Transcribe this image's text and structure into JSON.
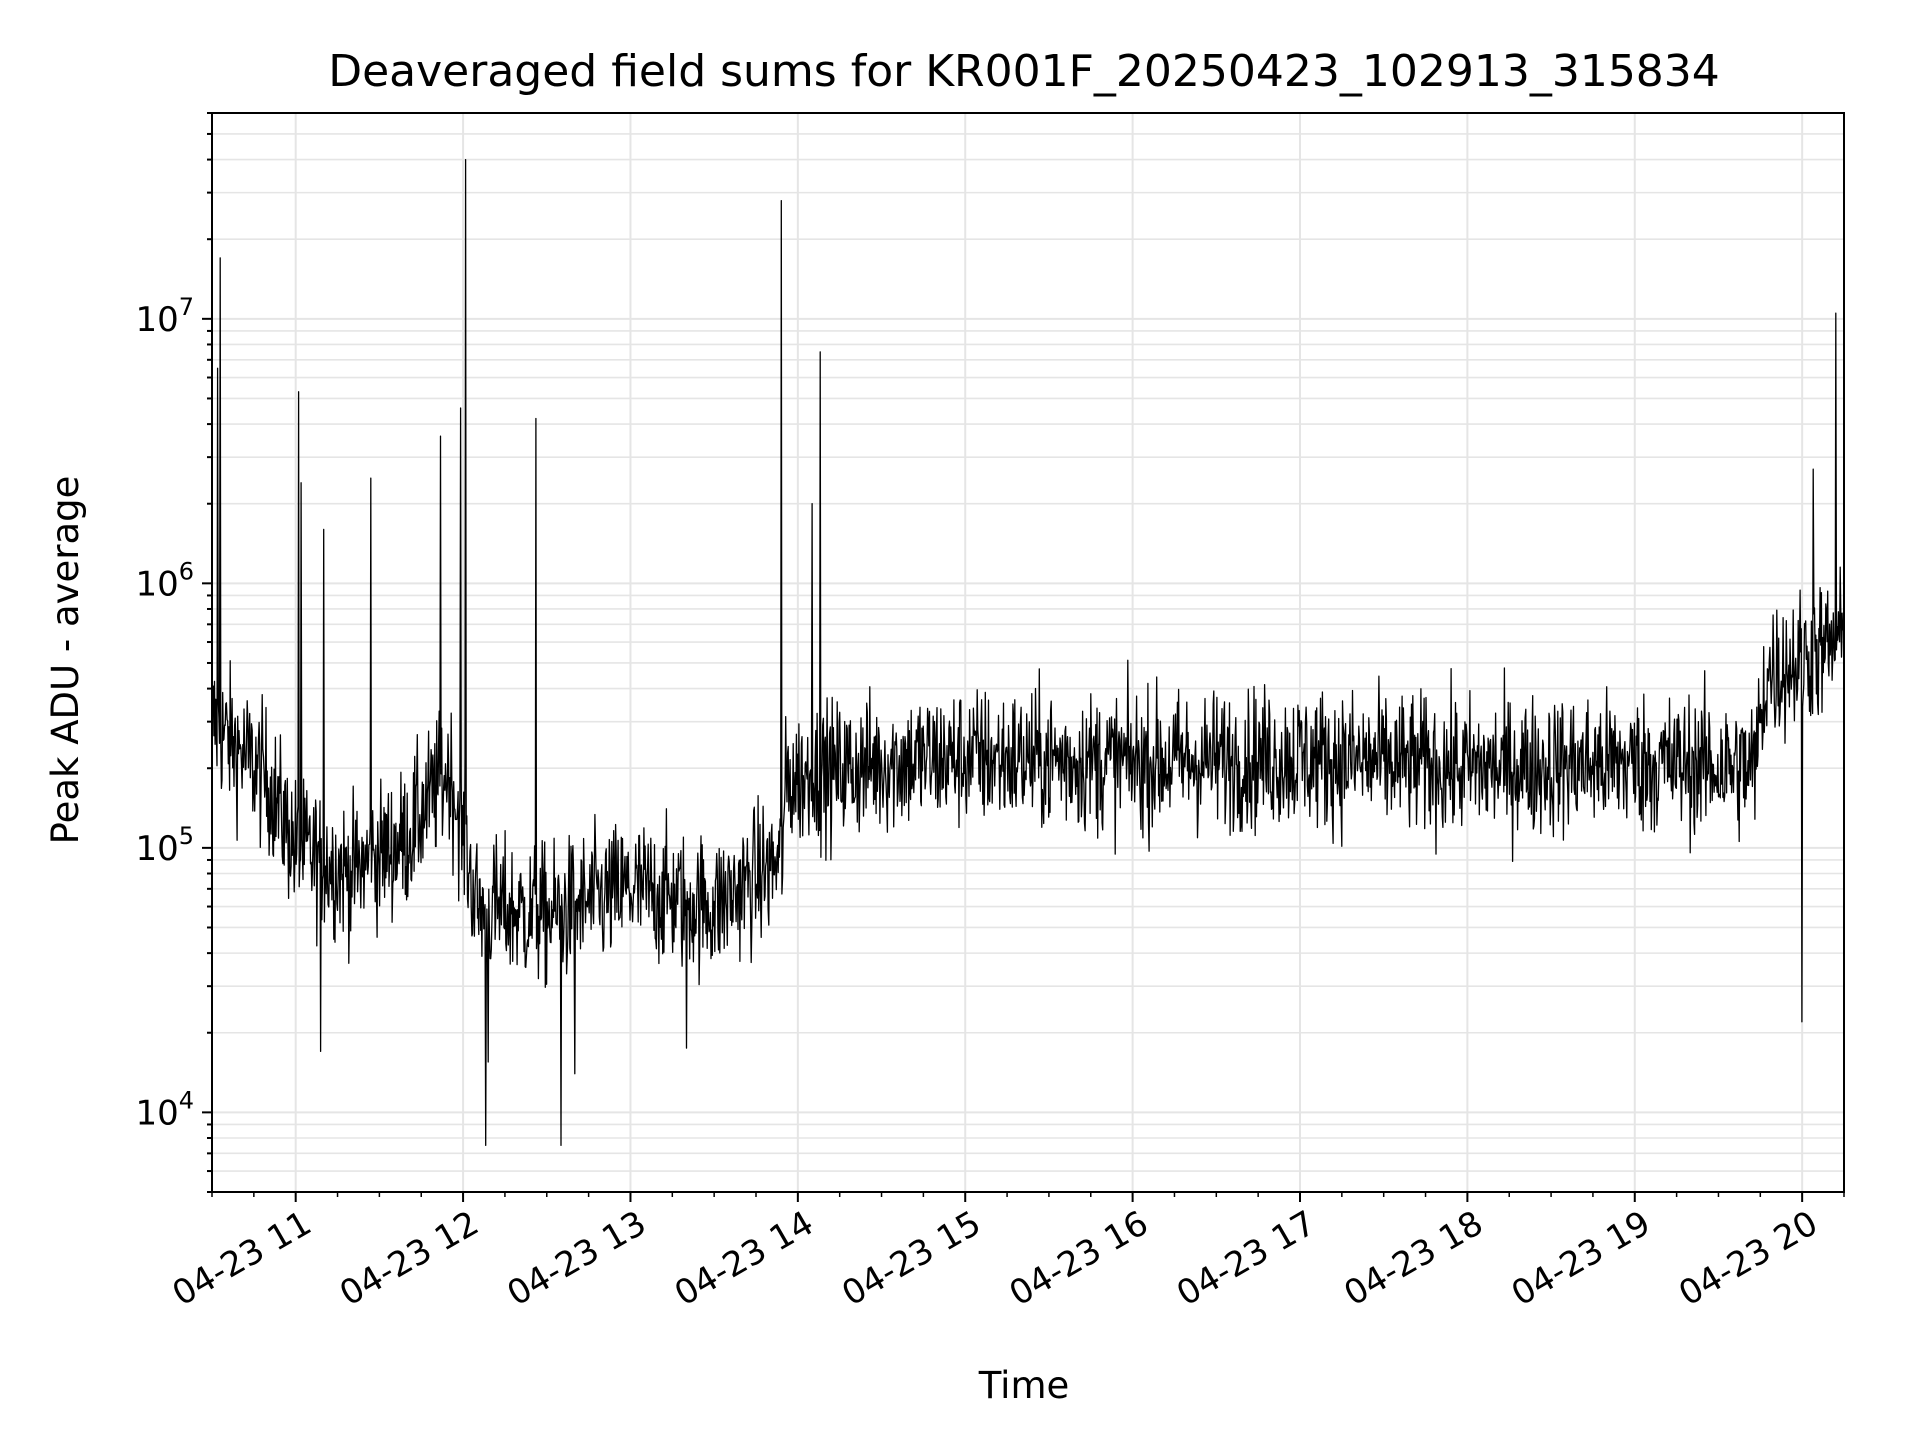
{
  "chart_data": {
    "type": "line",
    "title": "Deaveraged field sums for KR001F_20250423_102913_315834",
    "xlabel": "Time",
    "ylabel": "Peak ADU - average",
    "y_scale": "log",
    "ylim": [
      5000,
      60000000
    ],
    "xlim": [
      "2025-04-23 10:30",
      "2025-04-23 20:15"
    ],
    "grid": true,
    "line_color": "#000000",
    "grid_color": "#e5e5e5",
    "x_ticks": [
      {
        "t": "2025-04-23 11:00",
        "label": "04-23 11"
      },
      {
        "t": "2025-04-23 12:00",
        "label": "04-23 12"
      },
      {
        "t": "2025-04-23 13:00",
        "label": "04-23 13"
      },
      {
        "t": "2025-04-23 14:00",
        "label": "04-23 14"
      },
      {
        "t": "2025-04-23 15:00",
        "label": "04-23 15"
      },
      {
        "t": "2025-04-23 16:00",
        "label": "04-23 16"
      },
      {
        "t": "2025-04-23 17:00",
        "label": "04-23 17"
      },
      {
        "t": "2025-04-23 18:00",
        "label": "04-23 18"
      },
      {
        "t": "2025-04-23 19:00",
        "label": "04-23 19"
      },
      {
        "t": "2025-04-23 20:00",
        "label": "04-23 20"
      }
    ],
    "y_ticks": [
      {
        "v": 10000,
        "base": "10",
        "exp": "4"
      },
      {
        "v": 100000,
        "base": "10",
        "exp": "5"
      },
      {
        "v": 1000000,
        "base": "10",
        "exp": "6"
      },
      {
        "v": 10000000,
        "base": "10",
        "exp": "7"
      }
    ],
    "series": [
      {
        "baseline": [
          [
            "2025-04-23 10:30",
            300000
          ],
          [
            "2025-04-23 10:50",
            180000
          ],
          [
            "2025-04-23 11:00",
            100000
          ],
          [
            "2025-04-23 11:20",
            80000
          ],
          [
            "2025-04-23 11:40",
            110000
          ],
          [
            "2025-04-23 11:55",
            200000
          ],
          [
            "2025-04-23 12:05",
            60000
          ],
          [
            "2025-04-23 12:30",
            55000
          ],
          [
            "2025-04-23 13:00",
            70000
          ],
          [
            "2025-04-23 13:30",
            60000
          ],
          [
            "2025-04-23 13:54",
            90000
          ],
          [
            "2025-04-23 13:56",
            180000
          ],
          [
            "2025-04-23 14:30",
            210000
          ],
          [
            "2025-04-23 15:00",
            220000
          ],
          [
            "2025-04-23 16:00",
            210000
          ],
          [
            "2025-04-23 17:00",
            220000
          ],
          [
            "2025-04-23 18:00",
            200000
          ],
          [
            "2025-04-23 19:00",
            210000
          ],
          [
            "2025-04-23 19:43",
            200000
          ],
          [
            "2025-04-23 19:47",
            450000
          ],
          [
            "2025-04-23 20:15",
            600000
          ]
        ],
        "spikes": [
          [
            "2025-04-23 10:33",
            17000000
          ],
          [
            "2025-04-23 10:32",
            6500000
          ],
          [
            "2025-04-23 11:01",
            5300000
          ],
          [
            "2025-04-23 11:02",
            2400000
          ],
          [
            "2025-04-23 11:10",
            1600000
          ],
          [
            "2025-04-23 11:27",
            2500000
          ],
          [
            "2025-04-23 11:52",
            3600000
          ],
          [
            "2025-04-23 11:59",
            4600000
          ],
          [
            "2025-04-23 12:01",
            40000000
          ],
          [
            "2025-04-23 12:26",
            4200000
          ],
          [
            "2025-04-23 13:54",
            28000000
          ],
          [
            "2025-04-23 14:05",
            2000000
          ],
          [
            "2025-04-23 14:08",
            7500000
          ],
          [
            "2025-04-23 20:04",
            2700000
          ],
          [
            "2025-04-23 20:12",
            10500000
          ]
        ],
        "dips": [
          [
            "2025-04-23 12:08",
            7500
          ],
          [
            "2025-04-23 12:35",
            7500
          ],
          [
            "2025-04-23 11:09",
            17000
          ],
          [
            "2025-04-23 13:20",
            17500
          ],
          [
            "2025-04-23 12:09",
            15500
          ],
          [
            "2025-04-23 12:40",
            14000
          ],
          [
            "2025-04-23 20:00",
            22000
          ]
        ]
      }
    ]
  }
}
